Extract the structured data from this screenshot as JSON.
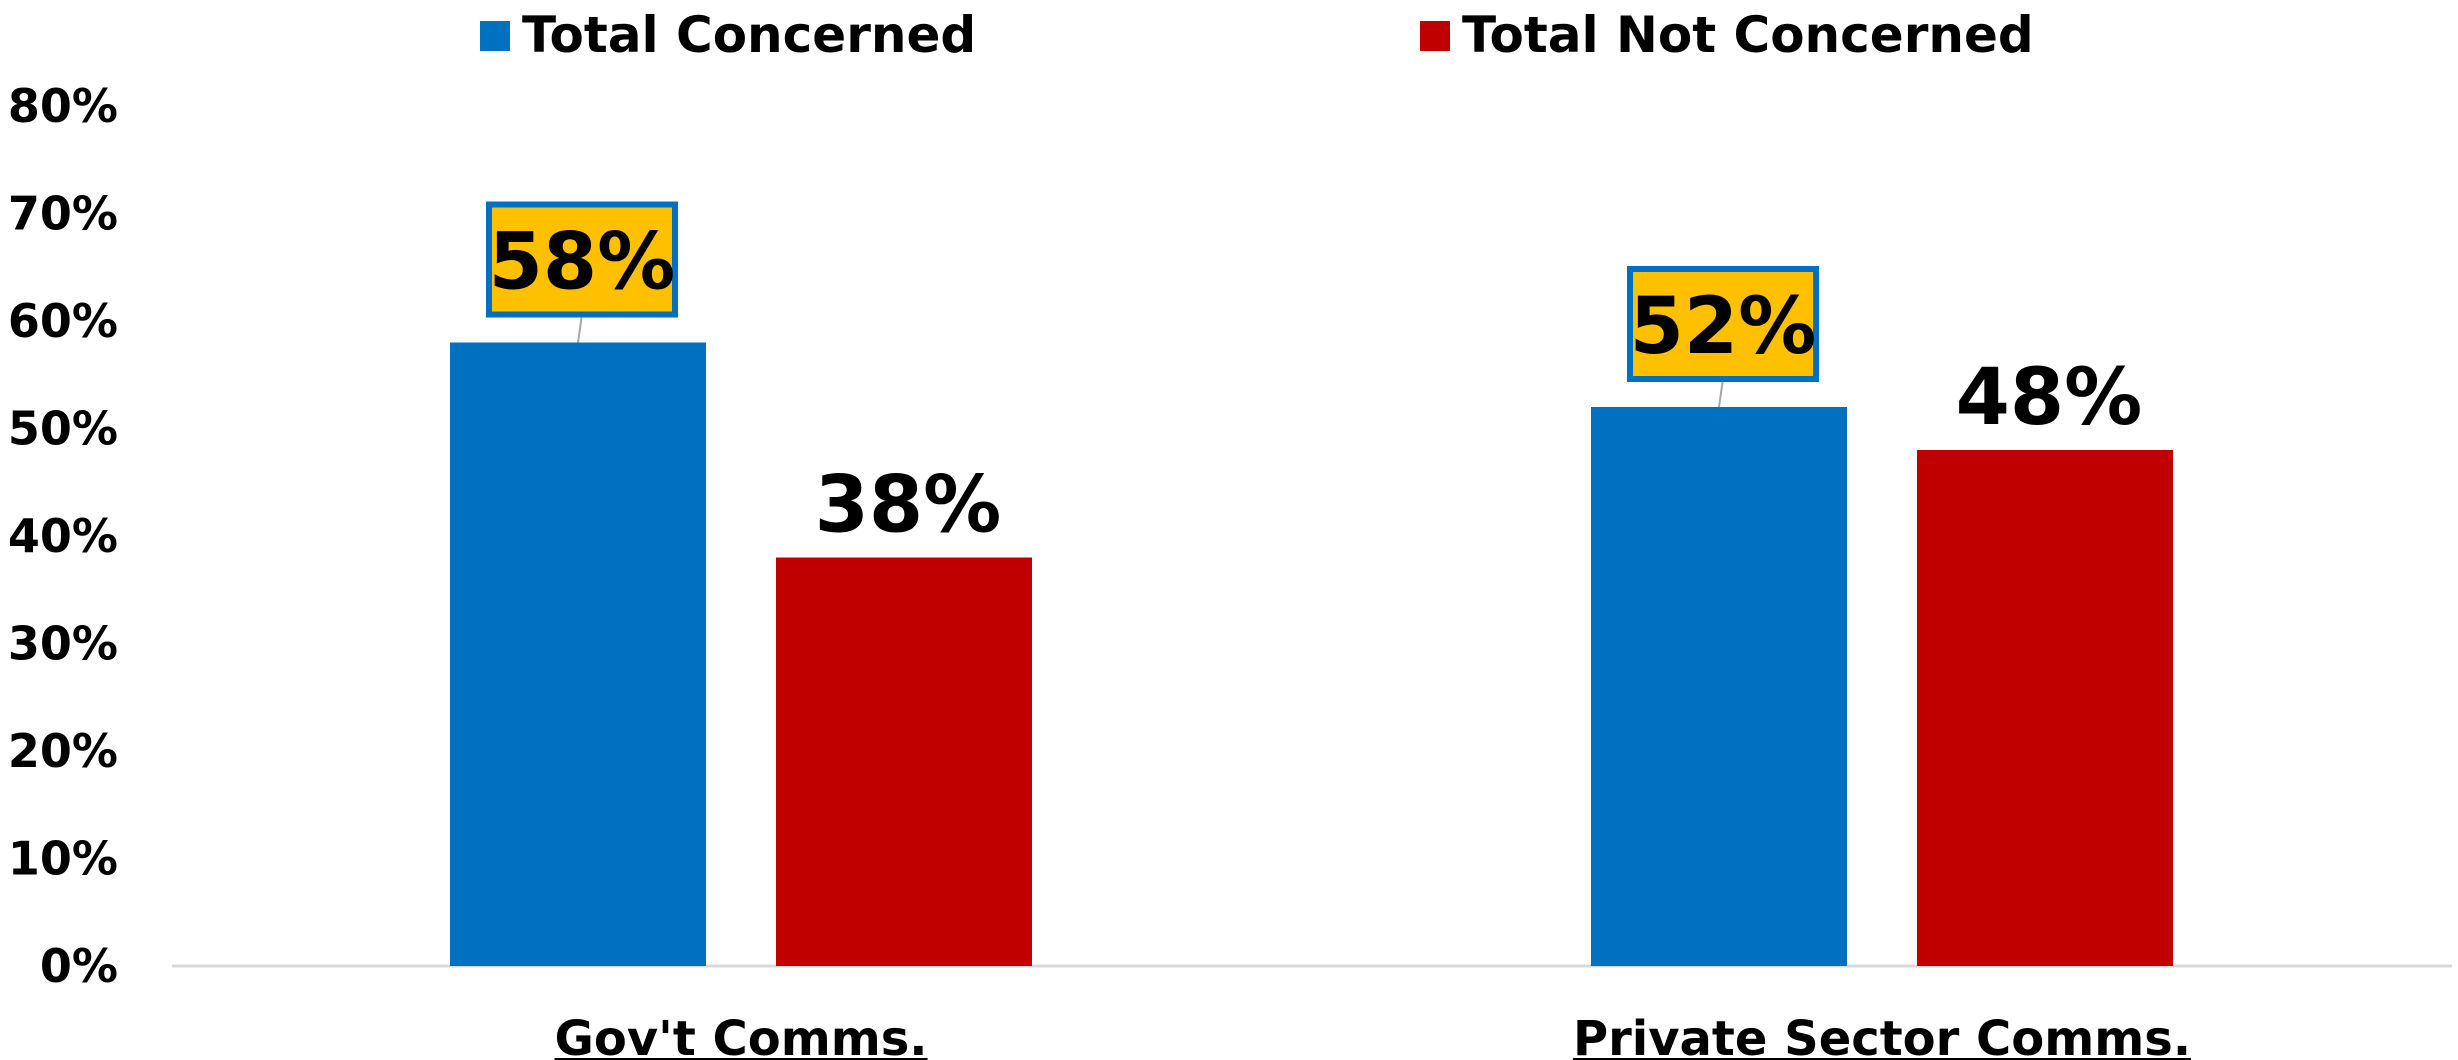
{
  "chart_data": {
    "type": "bar",
    "categories": [
      "Gov't Comms.",
      "Private Sector Comms."
    ],
    "series": [
      {
        "name": "Total Concerned",
        "values": [
          58,
          52
        ],
        "color": "#0070C0",
        "label_style": "callout"
      },
      {
        "name": "Total Not Concerned",
        "values": [
          38,
          48
        ],
        "color": "#C00000",
        "label_style": "plain"
      }
    ],
    "data_labels": [
      [
        "58%",
        "52%"
      ],
      [
        "38%",
        "48%"
      ]
    ],
    "y_ticks": [
      "0%",
      "10%",
      "20%",
      "30%",
      "40%",
      "50%",
      "60%",
      "70%",
      "80%"
    ],
    "ylim": [
      0,
      80
    ],
    "legend_position": "top",
    "grid": false,
    "callout_fill": "#FFC000",
    "callout_border": "#0070C0"
  }
}
